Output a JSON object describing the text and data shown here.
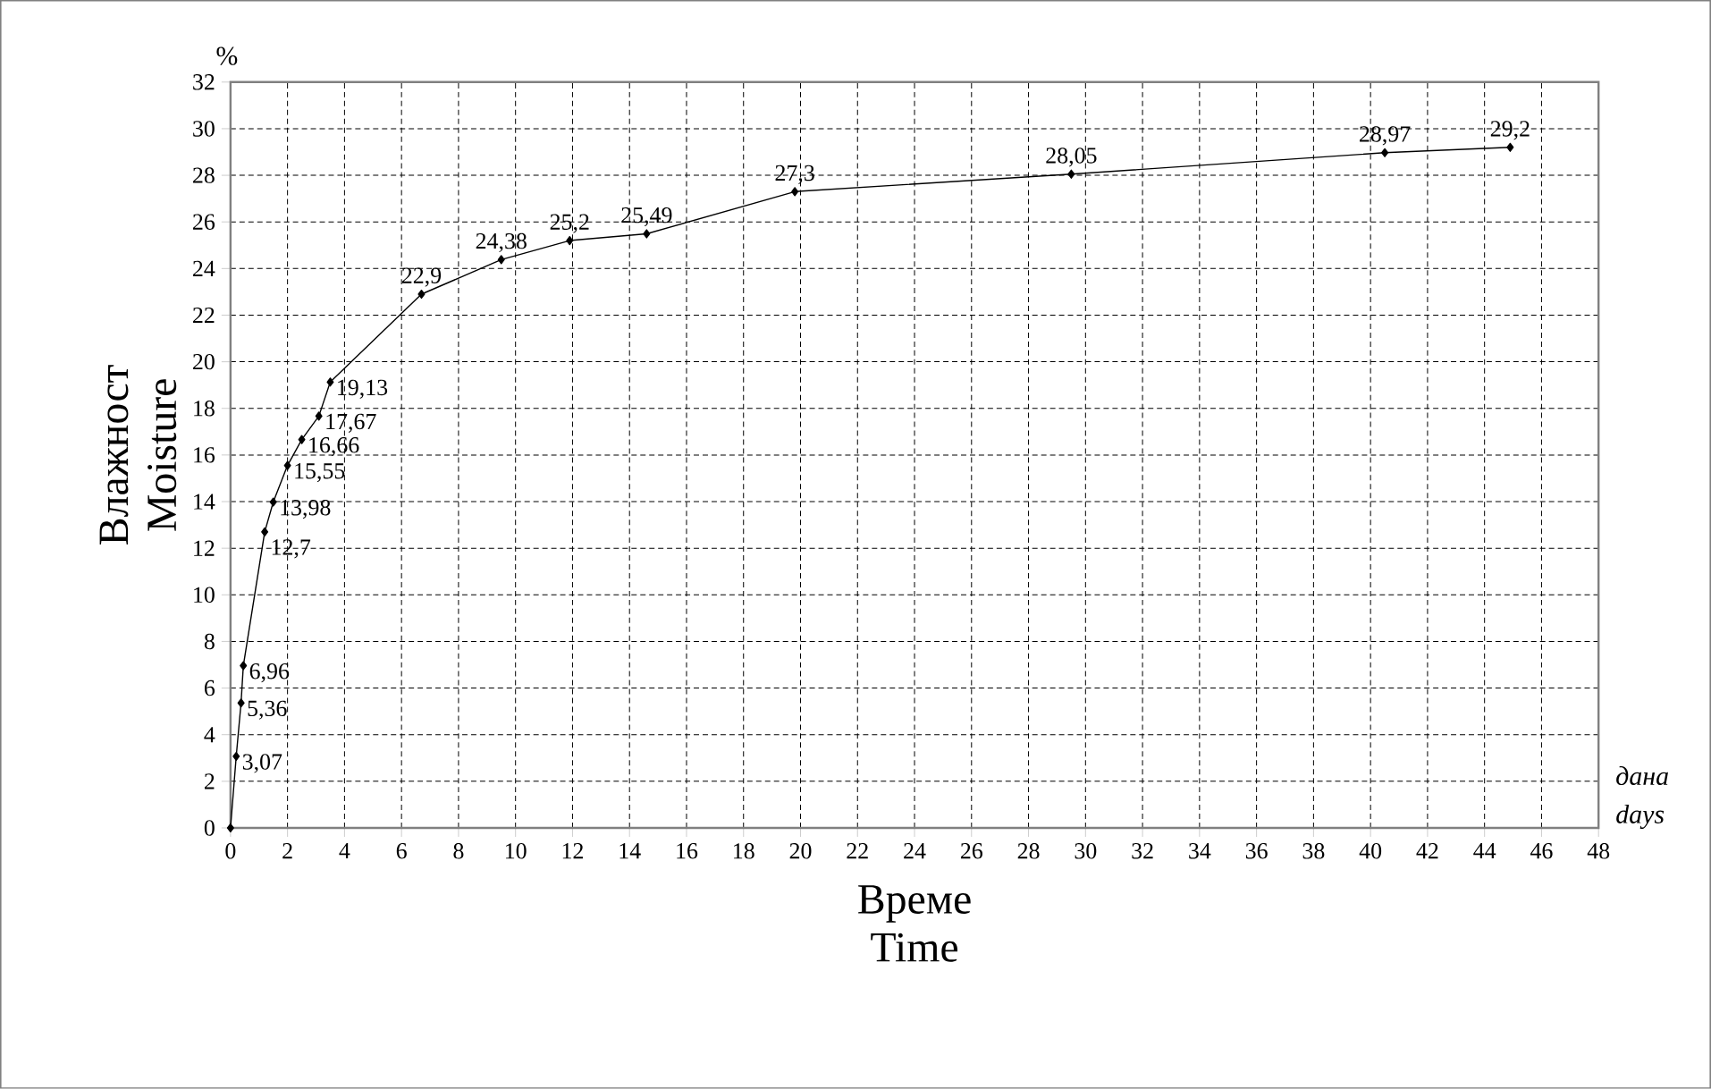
{
  "chart_data": {
    "type": "line",
    "xlabel": "Време\nTime",
    "ylabel": "Влажност\nMoisture",
    "annotations": [
      "%",
      "дана",
      "days"
    ],
    "x": [
      0,
      0.2,
      0.37,
      0.45,
      1.2,
      1.5,
      2.0,
      2.5,
      3.1,
      3.5,
      6.7,
      9.5,
      11.9,
      14.6,
      19.8,
      29.5,
      40.5,
      44.9
    ],
    "values": [
      0,
      3.07,
      5.36,
      6.96,
      12.7,
      13.98,
      15.55,
      16.66,
      17.67,
      19.13,
      22.9,
      24.38,
      25.2,
      25.49,
      27.3,
      28.05,
      28.97,
      29.2
    ],
    "value_labels": [
      null,
      "3,07",
      "5,36",
      "6,96",
      "12,7",
      "13,98",
      "15,55",
      "16,66",
      "17,67",
      "19,13",
      "22,9",
      "24,38",
      "25,2",
      "25,49",
      "27,3",
      "28,05",
      "28,97",
      "29,2"
    ],
    "color": "#000000",
    "marker": "diamond",
    "line_style": "solid",
    "grid": true,
    "xlim": [
      0,
      48
    ],
    "xticks": [
      0,
      2,
      4,
      6,
      8,
      10,
      12,
      14,
      16,
      18,
      20,
      22,
      24,
      26,
      28,
      30,
      32,
      34,
      36,
      38,
      40,
      42,
      44,
      46,
      48
    ],
    "ylim": [
      0,
      32
    ],
    "yticks": [
      0,
      2,
      4,
      6,
      8,
      10,
      12,
      14,
      16,
      18,
      20,
      22,
      24,
      26,
      28,
      30,
      32
    ]
  }
}
